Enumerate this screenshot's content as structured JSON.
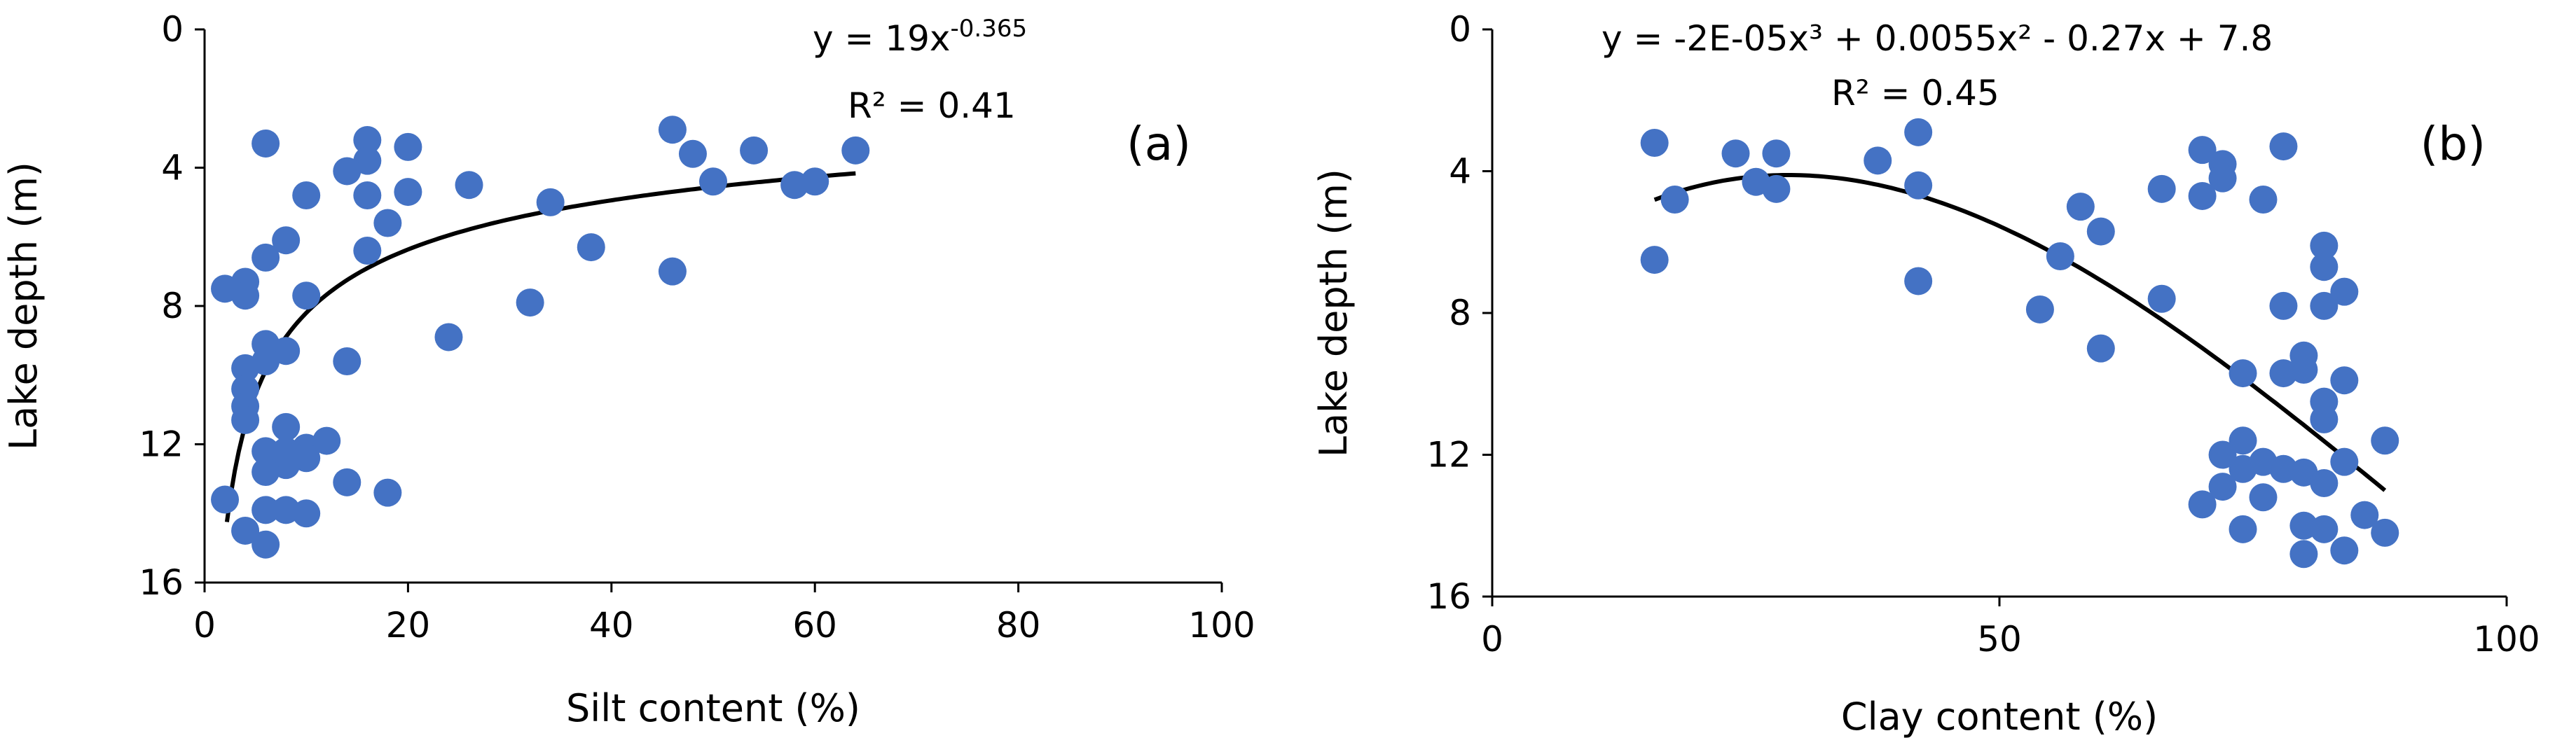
{
  "chart_data": [
    {
      "type": "scatter",
      "panel_label": "(a)",
      "xlabel": "Silt content (%)",
      "ylabel": "Lake depth (m)",
      "xlim": [
        0,
        100
      ],
      "ylim": [
        0,
        16
      ],
      "y_inverted": true,
      "x_axis_position": "bottom",
      "x_ticks": [
        "0",
        "20",
        "40",
        "60",
        "80",
        "100"
      ],
      "y_ticks": [
        "0",
        "4",
        "8",
        "12",
        "16"
      ],
      "grid": false,
      "marker_color": "#4472C4",
      "points": [
        [
          6,
          3.3
        ],
        [
          16,
          3.2
        ],
        [
          20,
          3.4
        ],
        [
          16,
          3.8
        ],
        [
          14,
          4.1
        ],
        [
          10,
          4.8
        ],
        [
          16,
          4.8
        ],
        [
          20,
          4.7
        ],
        [
          26,
          4.5
        ],
        [
          18,
          5.6
        ],
        [
          8,
          6.1
        ],
        [
          16,
          6.4
        ],
        [
          6,
          6.6
        ],
        [
          2,
          7.5
        ],
        [
          4,
          7.3
        ],
        [
          4,
          7.7
        ],
        [
          10,
          7.7
        ],
        [
          6,
          9.1
        ],
        [
          8,
          9.3
        ],
        [
          6,
          9.6
        ],
        [
          4,
          9.8
        ],
        [
          14,
          9.6
        ],
        [
          4,
          10.4
        ],
        [
          4,
          10.9
        ],
        [
          4,
          11.3
        ],
        [
          8,
          11.5
        ],
        [
          6,
          12.2
        ],
        [
          8,
          12.2
        ],
        [
          10,
          12.1
        ],
        [
          12,
          11.9
        ],
        [
          8,
          12.6
        ],
        [
          6,
          12.8
        ],
        [
          10,
          12.4
        ],
        [
          14,
          13.1
        ],
        [
          18,
          13.4
        ],
        [
          2,
          13.6
        ],
        [
          6,
          13.9
        ],
        [
          8,
          13.9
        ],
        [
          10,
          14.0
        ],
        [
          4,
          14.5
        ],
        [
          6,
          14.9
        ],
        [
          24,
          8.9
        ],
        [
          32,
          7.9
        ],
        [
          34,
          5.0
        ],
        [
          38,
          6.3
        ],
        [
          46,
          2.9
        ],
        [
          48,
          3.6
        ],
        [
          54,
          3.5
        ],
        [
          64,
          3.5
        ],
        [
          50,
          4.4
        ],
        [
          58,
          4.5
        ],
        [
          60,
          4.4
        ],
        [
          46,
          7.0
        ]
      ],
      "trendline": {
        "model": "power",
        "equation": "y = 19x",
        "exponent": "-0.365",
        "r_squared": "R² = 0.41",
        "a": 19,
        "b": -0.365,
        "x_range": [
          2.2,
          64
        ]
      }
    },
    {
      "type": "scatter",
      "panel_label": "(b)",
      "xlabel": "Clay content (%)",
      "ylabel": "Lake depth (m)",
      "xlim": [
        0,
        100
      ],
      "ylim": [
        0,
        16
      ],
      "y_inverted": true,
      "x_axis_position": "bottom",
      "x_ticks": [
        "0",
        "50",
        "100"
      ],
      "y_ticks": [
        "0",
        "4",
        "8",
        "12",
        "16"
      ],
      "grid": false,
      "marker_color": "#4472C4",
      "points": [
        [
          16,
          3.2
        ],
        [
          24,
          3.5
        ],
        [
          28,
          3.5
        ],
        [
          16,
          6.5
        ],
        [
          18,
          4.8
        ],
        [
          26,
          4.3
        ],
        [
          28,
          4.5
        ],
        [
          38,
          3.7
        ],
        [
          42,
          2.9
        ],
        [
          42,
          4.4
        ],
        [
          42,
          7.1
        ],
        [
          54,
          7.9
        ],
        [
          56,
          6.4
        ],
        [
          58,
          5.0
        ],
        [
          60,
          5.7
        ],
        [
          60,
          9.0
        ],
        [
          66,
          4.5
        ],
        [
          66,
          7.6
        ],
        [
          70,
          3.4
        ],
        [
          70,
          4.7
        ],
        [
          72,
          3.8
        ],
        [
          72,
          4.2
        ],
        [
          76,
          4.8
        ],
        [
          78,
          3.3
        ],
        [
          78,
          7.8
        ],
        [
          74,
          9.7
        ],
        [
          70,
          13.4
        ],
        [
          72,
          12.0
        ],
        [
          72,
          12.9
        ],
        [
          74,
          11.6
        ],
        [
          74,
          12.4
        ],
        [
          74,
          14.1
        ],
        [
          76,
          13.2
        ],
        [
          78,
          9.7
        ],
        [
          78,
          12.4
        ],
        [
          80,
          9.2
        ],
        [
          80,
          9.6
        ],
        [
          80,
          12.5
        ],
        [
          80,
          14.0
        ],
        [
          80,
          14.8
        ],
        [
          82,
          6.1
        ],
        [
          82,
          6.7
        ],
        [
          82,
          7.8
        ],
        [
          82,
          10.5
        ],
        [
          82,
          11.0
        ],
        [
          82,
          12.8
        ],
        [
          82,
          14.1
        ],
        [
          84,
          7.4
        ],
        [
          84,
          9.9
        ],
        [
          84,
          12.2
        ],
        [
          84,
          14.7
        ],
        [
          86,
          13.7
        ],
        [
          88,
          11.6
        ],
        [
          88,
          14.2
        ],
        [
          76,
          12.2
        ]
      ],
      "trendline": {
        "model": "polynomial",
        "equation": "y = -2E-05x³ + 0.0055x² - 0.27x + 7.8",
        "r_squared": "R² = 0.45",
        "coefficients": [
          -2e-05,
          0.0055,
          -0.27,
          7.8
        ],
        "x_range": [
          16,
          88
        ]
      }
    }
  ]
}
